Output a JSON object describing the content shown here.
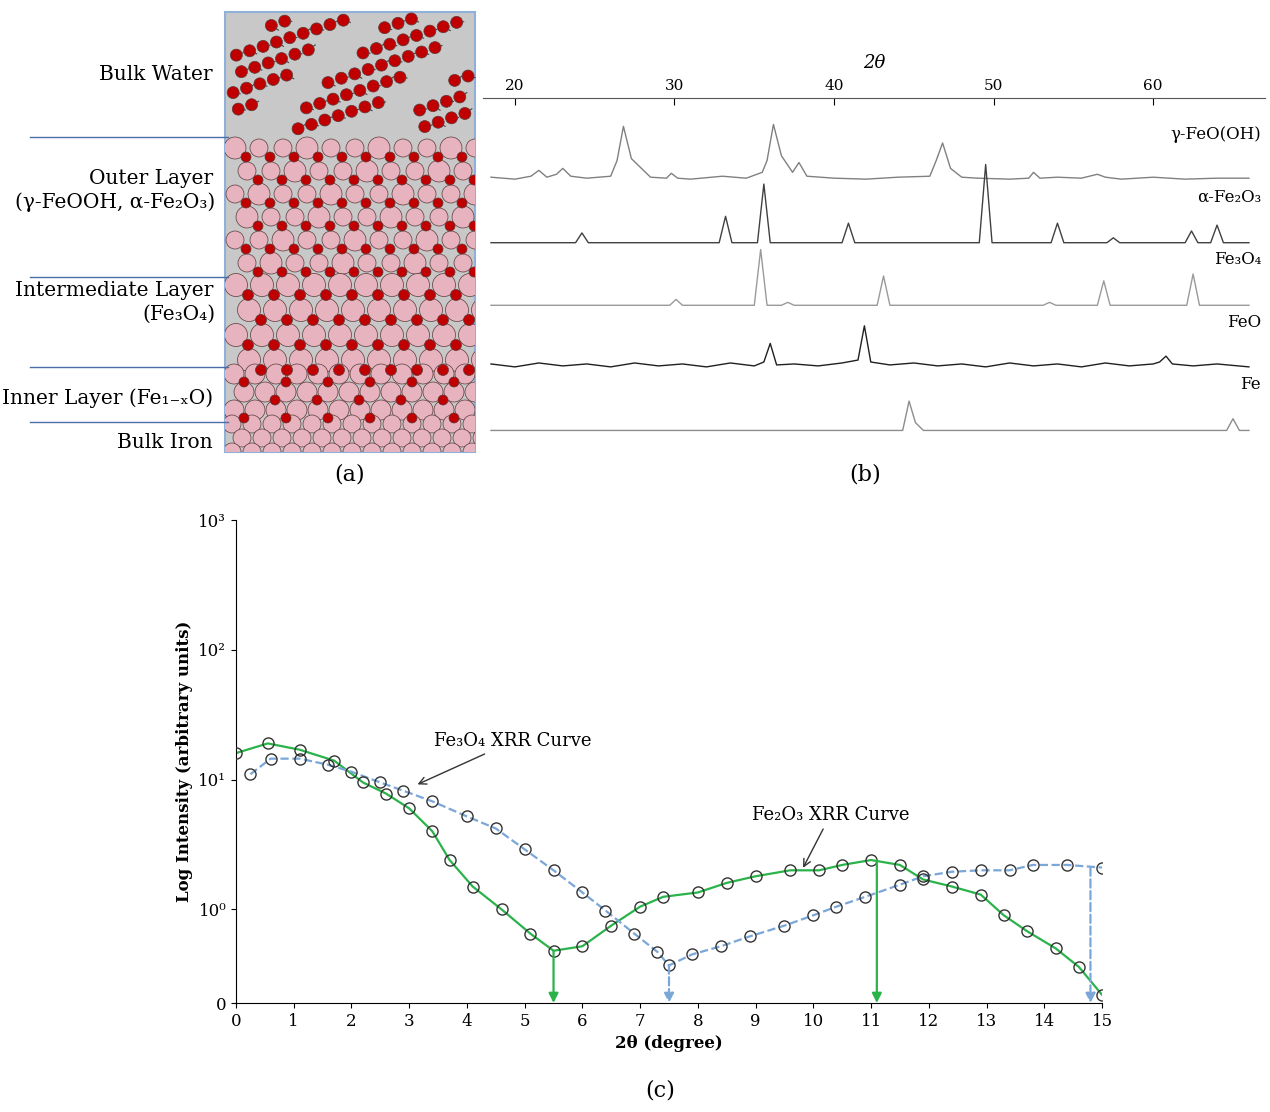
{
  "diagram": {
    "caption": "(a)",
    "layers": [
      {
        "label": "Bulk Water"
      },
      {
        "label": "Outer Layer",
        "detail": "(γ-FeOOH, α-Fe₂O₃)"
      },
      {
        "label": "Intermediate Layer",
        "detail": "(Fe₃O₄)"
      },
      {
        "label": "Inner Layer (Fe₁₋ₓO)"
      },
      {
        "label": "Bulk Iron"
      }
    ]
  },
  "chart_data": [
    {
      "type": "line",
      "caption": "(b)",
      "x_label": "2θ",
      "xlim": [
        18,
        67
      ],
      "xticks": [
        20,
        30,
        40,
        50,
        60
      ],
      "ylim": [
        0,
        360
      ],
      "tick_labels": "x",
      "series": [
        {
          "name": "γ-FeO(OH)",
          "color": "#808080",
          "x": [
            18.5,
            20,
            21,
            21.5,
            22,
            22.6,
            23,
            23.5,
            24.5,
            26,
            26.4,
            26.8,
            27.3,
            28.5,
            29.5,
            29.8,
            30.2,
            31,
            33,
            34.5,
            35.5,
            35.8,
            36.2,
            36.7,
            37.4,
            37.8,
            38.3,
            40,
            42,
            44,
            46,
            46.4,
            46.8,
            47.3,
            48,
            49,
            51,
            52.2,
            52.5,
            52.9,
            54,
            55.5,
            56.5,
            57,
            58,
            60,
            62,
            64,
            66
          ],
          "values": [
            3,
            1,
            4,
            10,
            3,
            6,
            12,
            4,
            2,
            4,
            20,
            55,
            22,
            3,
            2,
            7,
            2,
            1,
            4,
            2,
            8,
            20,
            57,
            25,
            8,
            18,
            4,
            2,
            1,
            3,
            4,
            20,
            38,
            12,
            3,
            2,
            1,
            2,
            8,
            2,
            3,
            2,
            6,
            3,
            1,
            3,
            1,
            2,
            2
          ]
        },
        {
          "name": "α-Fe₂O₃",
          "color": "#404040",
          "x": [
            18.5,
            23.8,
            24.2,
            24.6,
            32.8,
            33.2,
            33.6,
            35.2,
            35.6,
            36,
            40.5,
            40.9,
            41.3,
            49.1,
            49.5,
            49.9,
            53.6,
            54,
            54.4,
            57.1,
            57.5,
            57.9,
            62,
            62.4,
            62.8,
            63.6,
            64,
            64.4,
            66
          ],
          "values": [
            0,
            0,
            10,
            0,
            0,
            27,
            0,
            0,
            60,
            0,
            0,
            20,
            0,
            0,
            80,
            0,
            0,
            20,
            0,
            0,
            5,
            0,
            0,
            12,
            0,
            0,
            18,
            0,
            0
          ]
        },
        {
          "name": "Fe₃O₄",
          "color": "#9a9a9a",
          "x": [
            18.5,
            29.7,
            30.1,
            30.5,
            35,
            35.4,
            35.8,
            36.7,
            37.1,
            37.5,
            42.7,
            43.1,
            43.5,
            53.1,
            53.5,
            53.9,
            56.5,
            56.9,
            57.3,
            62.1,
            62.5,
            62.9,
            66
          ],
          "values": [
            0,
            0,
            6,
            0,
            0,
            57,
            0,
            0,
            3,
            0,
            0,
            30,
            0,
            0,
            3,
            0,
            0,
            25,
            0,
            0,
            32,
            0,
            0
          ]
        },
        {
          "name": "FeO",
          "color": "#202020",
          "x": [
            18.5,
            20,
            21.5,
            23,
            24.5,
            26,
            27.5,
            29,
            30.5,
            32,
            33.5,
            35,
            35.6,
            36,
            36.4,
            37.5,
            39,
            40.5,
            41.5,
            41.9,
            42.3,
            43.5,
            45,
            46.5,
            48,
            49.5,
            51,
            52.5,
            54,
            55.5,
            57,
            58.5,
            60,
            60.4,
            60.8,
            61.2,
            62.5,
            64,
            66
          ],
          "values": [
            4,
            1,
            5,
            2,
            4,
            1,
            5,
            2,
            4,
            1,
            5,
            2,
            6,
            25,
            3,
            4,
            2,
            5,
            8,
            43,
            6,
            3,
            5,
            2,
            4,
            1,
            5,
            2,
            4,
            1,
            5,
            2,
            4,
            6,
            12,
            4,
            2,
            4,
            1
          ]
        },
        {
          "name": "Fe",
          "color": "#8c8c8c",
          "x": [
            18.5,
            44.3,
            44.7,
            45.1,
            45.6,
            64.6,
            65,
            65.4,
            66
          ],
          "values": [
            0,
            0,
            30,
            8,
            0,
            0,
            12,
            0,
            0
          ]
        }
      ]
    },
    {
      "type": "line",
      "caption": "(c)",
      "x_label": "2θ (degree)",
      "y_label": "Log Intensity (arbitrary units)",
      "log": "y",
      "grid": false,
      "xlim": [
        0,
        15
      ],
      "xticks": [
        0,
        1,
        2,
        3,
        4,
        5,
        6,
        7,
        8,
        9,
        10,
        11,
        12,
        13,
        14,
        15
      ],
      "ylim": [
        0.19,
        1000
      ],
      "yticks": [
        {
          "value": 0.19,
          "label": "0"
        },
        {
          "value": 1,
          "label": "10⁰"
        },
        {
          "value": 10,
          "label": "10¹"
        },
        {
          "value": 100,
          "label": "10²"
        },
        {
          "value": 1000,
          "label": "10³"
        }
      ],
      "series": [
        {
          "name": "Fe₂O₃ XRR Curve",
          "color": "#2bb34b",
          "line_style": "solid",
          "marker": "circle",
          "x": [
            0,
            0.55,
            1.1,
            1.7,
            2.2,
            2.6,
            3.0,
            3.4,
            3.7,
            4.1,
            4.6,
            5.1,
            5.5,
            6.0,
            6.5,
            7.0,
            7.4,
            8.0,
            8.5,
            9.0,
            9.6,
            10.1,
            10.5,
            11.0,
            11.5,
            11.9,
            12.4,
            12.9,
            13.3,
            13.7,
            14.2,
            14.6,
            15.0
          ],
          "values": [
            16,
            19,
            17,
            14,
            9.5,
            7.8,
            6,
            4,
            2.4,
            1.5,
            1.0,
            0.65,
            0.48,
            0.52,
            0.75,
            1.05,
            1.25,
            1.35,
            1.6,
            1.8,
            2.0,
            2.0,
            2.2,
            2.4,
            2.2,
            1.7,
            1.5,
            1.3,
            0.9,
            0.68,
            0.5,
            0.36,
            0.22
          ],
          "label_point": [
            9.8,
            2.0
          ],
          "arrows": [
            {
              "x": 5.5,
              "y": 0.48
            },
            {
              "x": 11.1,
              "y": 2.4
            }
          ]
        },
        {
          "name": "Fe₃O₄ XRR Curve",
          "color": "#7aa6d8",
          "line_style": "dashed",
          "marker": "circle",
          "x": [
            0.25,
            0.6,
            1.1,
            1.6,
            2.0,
            2.5,
            2.9,
            3.4,
            4.0,
            4.5,
            5.0,
            5.5,
            6.0,
            6.4,
            6.9,
            7.3,
            7.5,
            7.9,
            8.4,
            8.9,
            9.5,
            10.0,
            10.4,
            10.9,
            11.5,
            11.9,
            12.4,
            12.9,
            13.4,
            13.8,
            14.4,
            15.0
          ],
          "values": [
            11,
            14.5,
            14.5,
            13,
            11.5,
            9.5,
            8.2,
            6.8,
            5.2,
            4.2,
            2.9,
            2.0,
            1.35,
            0.98,
            0.65,
            0.47,
            0.37,
            0.45,
            0.52,
            0.62,
            0.75,
            0.9,
            1.05,
            1.25,
            1.55,
            1.8,
            1.95,
            2.0,
            2.0,
            2.2,
            2.2,
            2.1
          ],
          "label_point": [
            3.1,
            9.0
          ],
          "arrows": [
            {
              "x": 7.5,
              "y": 0.37
            },
            {
              "x": 14.8,
              "y": 2.1
            }
          ]
        }
      ]
    }
  ]
}
